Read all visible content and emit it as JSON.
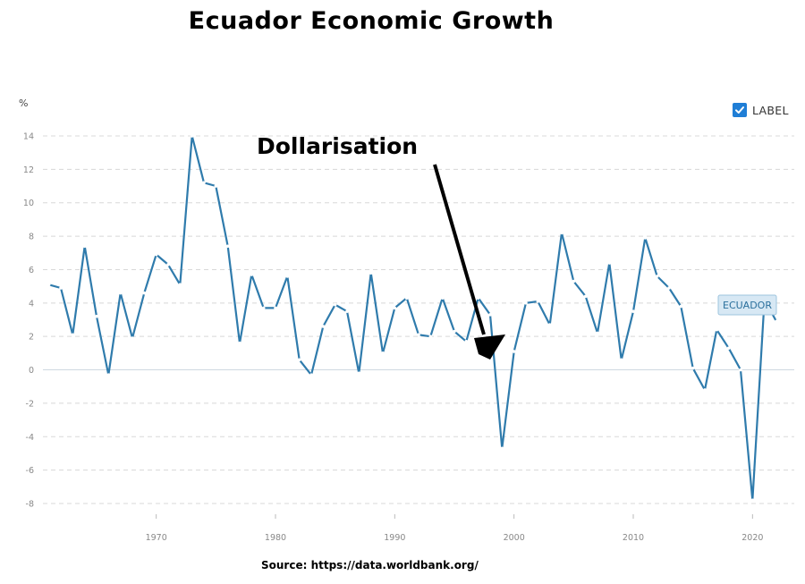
{
  "title": "Ecuador Economic Growth",
  "unit_label": "%",
  "legend": {
    "label": "LABEL",
    "checked": true
  },
  "source": "Source: https://data.worldbank.org/",
  "colors": {
    "line": "#2f7bac",
    "grid": "#d8d8d8",
    "checkbox": "#1f7ed6"
  },
  "chart_data": {
    "type": "line",
    "title": "Ecuador Economic Growth",
    "ylabel": "%",
    "xlabel": "",
    "ylim": [
      -8,
      14
    ],
    "xlim": [
      1960.5,
      2023.5
    ],
    "yticks": [
      14,
      12,
      10,
      8,
      6,
      4,
      2,
      0,
      -2,
      -4,
      -6,
      -8
    ],
    "xticks": [
      1970,
      1980,
      1990,
      2000,
      2010,
      2020
    ],
    "grid": true,
    "legend_position": "top-right",
    "annotation": "Dollarisation",
    "series": [
      {
        "name": "ECUADOR",
        "x": [
          1961,
          1962,
          1963,
          1964,
          1965,
          1966,
          1967,
          1968,
          1969,
          1970,
          1971,
          1972,
          1973,
          1974,
          1975,
          1976,
          1977,
          1978,
          1979,
          1980,
          1981,
          1982,
          1983,
          1984,
          1985,
          1986,
          1987,
          1988,
          1989,
          1990,
          1991,
          1992,
          1993,
          1994,
          1995,
          1996,
          1997,
          1998,
          1999,
          2000,
          2001,
          2002,
          2003,
          2004,
          2005,
          2006,
          2007,
          2008,
          2009,
          2010,
          2011,
          2012,
          2013,
          2014,
          2015,
          2016,
          2017,
          2018,
          2019,
          2020,
          2021,
          2022
        ],
        "values": [
          5.1,
          4.9,
          2.1,
          7.4,
          3.2,
          -0.3,
          4.6,
          1.9,
          4.6,
          6.9,
          6.3,
          5.1,
          14.0,
          11.2,
          11.0,
          7.4,
          1.6,
          5.7,
          3.7,
          3.7,
          5.6,
          0.6,
          -0.3,
          2.6,
          3.9,
          3.5,
          -0.2,
          5.8,
          1.0,
          3.7,
          4.3,
          2.1,
          2.0,
          4.3,
          2.3,
          1.7,
          4.3,
          3.3,
          -4.7,
          1.1,
          4.0,
          4.1,
          2.7,
          8.2,
          5.3,
          4.4,
          2.2,
          6.4,
          0.6,
          3.5,
          7.9,
          5.6,
          4.9,
          3.8,
          0.1,
          -1.2,
          2.4,
          1.3,
          0.0,
          -7.8,
          4.2,
          2.9
        ]
      }
    ]
  }
}
